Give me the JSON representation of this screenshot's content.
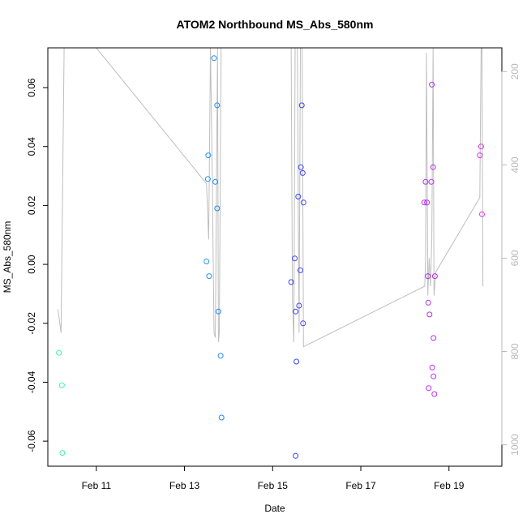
{
  "chart_data": {
    "type": "scatter",
    "title": "ATOM2 Northbound MS_Abs_580nm",
    "xlabel": "Date",
    "ylabel": "MS_Abs_580nm",
    "x_ticks": [
      "Feb 11",
      "Feb 13",
      "Feb 15",
      "Feb 17",
      "Feb 19"
    ],
    "x_tick_days": [
      11,
      13,
      15,
      17,
      19
    ],
    "xlim": [
      9.9,
      20.2
    ],
    "y_ticks": [
      "-0.06",
      "-0.04",
      "-0.02",
      "0.00",
      "0.02",
      "0.04",
      "0.06"
    ],
    "y_tick_values": [
      -0.06,
      -0.04,
      -0.02,
      0.0,
      0.02,
      0.04,
      0.06
    ],
    "ylim": [
      -0.0685,
      0.0735
    ],
    "y2_ticks": [
      "200",
      "400",
      "600",
      "800",
      "1000"
    ],
    "y2_tick_values": [
      200,
      400,
      600,
      800,
      1000
    ],
    "y2lim": [
      1046,
      149
    ],
    "grid": false,
    "colors": {
      "line": "#bebebe",
      "axis": "#000000",
      "right_axis": "#b8b8b8",
      "ramp": [
        "#3ff5a5",
        "#22c7f0",
        "#1f4ff0",
        "#8a2bf0",
        "#e030f0"
      ]
    },
    "points": [
      {
        "x": 10.15,
        "y": -0.03
      },
      {
        "x": 10.22,
        "y": -0.041
      },
      {
        "x": 10.23,
        "y": -0.064
      },
      {
        "x": 13.5,
        "y": 0.001
      },
      {
        "x": 13.53,
        "y": 0.029
      },
      {
        "x": 13.54,
        "y": 0.037
      },
      {
        "x": 13.56,
        "y": -0.004
      },
      {
        "x": 13.67,
        "y": 0.07
      },
      {
        "x": 13.7,
        "y": 0.028
      },
      {
        "x": 13.74,
        "y": 0.054
      },
      {
        "x": 13.74,
        "y": 0.019
      },
      {
        "x": 13.77,
        "y": -0.016
      },
      {
        "x": 13.82,
        "y": -0.031
      },
      {
        "x": 13.84,
        "y": -0.052
      },
      {
        "x": 15.42,
        "y": -0.006
      },
      {
        "x": 15.5,
        "y": 0.002
      },
      {
        "x": 15.52,
        "y": -0.016
      },
      {
        "x": 15.52,
        "y": -0.065
      },
      {
        "x": 15.54,
        "y": -0.033
      },
      {
        "x": 15.58,
        "y": 0.023
      },
      {
        "x": 15.6,
        "y": -0.014
      },
      {
        "x": 15.63,
        "y": -0.002
      },
      {
        "x": 15.64,
        "y": 0.033
      },
      {
        "x": 15.66,
        "y": 0.054
      },
      {
        "x": 15.68,
        "y": 0.031
      },
      {
        "x": 15.69,
        "y": -0.02
      },
      {
        "x": 15.7,
        "y": 0.021
      },
      {
        "x": 18.44,
        "y": 0.021
      },
      {
        "x": 18.47,
        "y": 0.028
      },
      {
        "x": 18.5,
        "y": 0.021
      },
      {
        "x": 18.52,
        "y": -0.004
      },
      {
        "x": 18.53,
        "y": -0.013
      },
      {
        "x": 18.54,
        "y": -0.042
      },
      {
        "x": 18.56,
        "y": -0.017
      },
      {
        "x": 18.6,
        "y": 0.028
      },
      {
        "x": 18.61,
        "y": 0.061
      },
      {
        "x": 18.62,
        "y": -0.035
      },
      {
        "x": 18.64,
        "y": 0.033
      },
      {
        "x": 18.65,
        "y": -0.025
      },
      {
        "x": 18.65,
        "y": -0.038
      },
      {
        "x": 18.67,
        "y": -0.044
      },
      {
        "x": 18.68,
        "y": -0.004
      },
      {
        "x": 19.7,
        "y": 0.037
      },
      {
        "x": 19.73,
        "y": 0.04
      },
      {
        "x": 19.75,
        "y": 0.017
      }
    ],
    "line_series": [
      {
        "x": 10.13,
        "y": 710
      },
      {
        "x": 10.2,
        "y": 760
      },
      {
        "x": 10.27,
        "y": 149
      },
      {
        "x": 11.0,
        "y": 149
      },
      {
        "x": 13.5,
        "y": 440
      },
      {
        "x": 13.55,
        "y": 560
      },
      {
        "x": 13.59,
        "y": 149
      },
      {
        "x": 13.63,
        "y": 420
      },
      {
        "x": 13.67,
        "y": 760
      },
      {
        "x": 13.7,
        "y": 770
      },
      {
        "x": 13.75,
        "y": 149
      },
      {
        "x": 13.77,
        "y": 780
      },
      {
        "x": 13.79,
        "y": 760
      },
      {
        "x": 13.83,
        "y": 149
      },
      {
        "x": 15.42,
        "y": 149
      },
      {
        "x": 15.45,
        "y": 690
      },
      {
        "x": 15.48,
        "y": 780
      },
      {
        "x": 15.51,
        "y": 149
      },
      {
        "x": 15.56,
        "y": 149
      },
      {
        "x": 15.6,
        "y": 760
      },
      {
        "x": 15.63,
        "y": 149
      },
      {
        "x": 15.67,
        "y": 149
      },
      {
        "x": 15.7,
        "y": 790
      },
      {
        "x": 18.45,
        "y": 660
      },
      {
        "x": 18.47,
        "y": 600
      },
      {
        "x": 18.49,
        "y": 160
      },
      {
        "x": 18.52,
        "y": 680
      },
      {
        "x": 18.55,
        "y": 600
      },
      {
        "x": 18.58,
        "y": 660
      },
      {
        "x": 18.61,
        "y": 560
      },
      {
        "x": 18.64,
        "y": 149
      },
      {
        "x": 18.66,
        "y": 680
      },
      {
        "x": 18.7,
        "y": 630
      },
      {
        "x": 19.7,
        "y": 470
      },
      {
        "x": 19.73,
        "y": 149
      },
      {
        "x": 19.75,
        "y": 150
      },
      {
        "x": 19.77,
        "y": 660
      }
    ]
  }
}
